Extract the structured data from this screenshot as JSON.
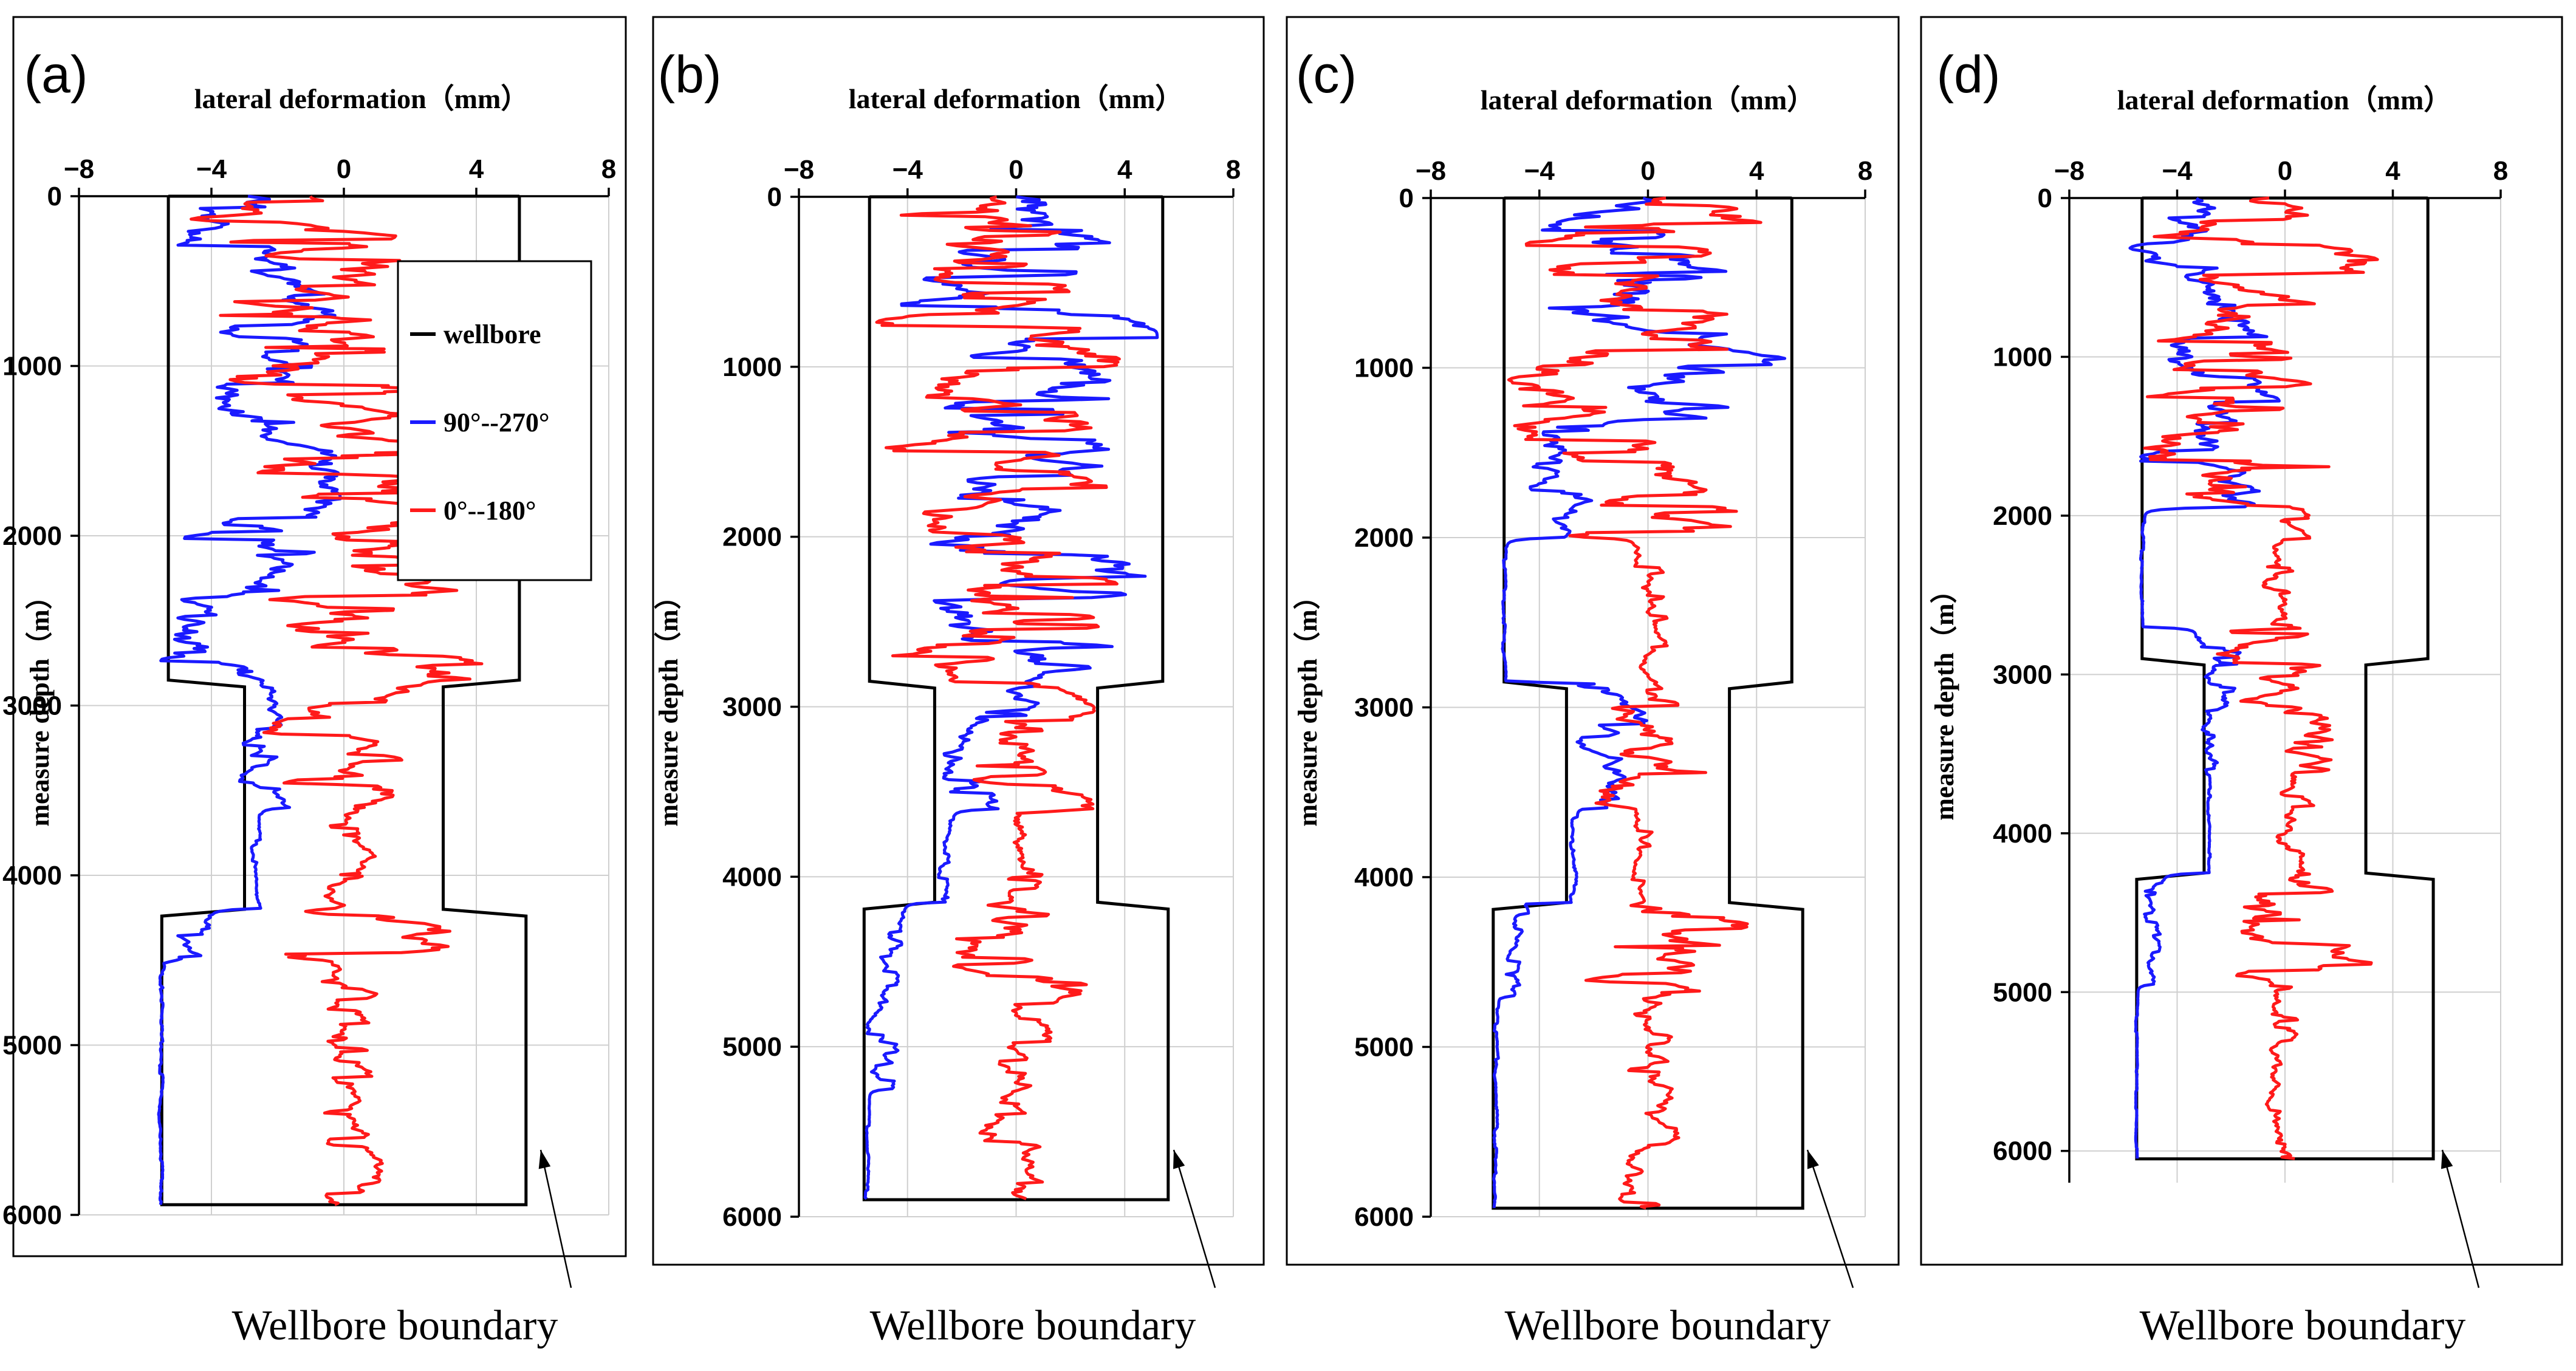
{
  "chart_data": [
    {
      "panel_label": "(a)",
      "type": "line",
      "xlabel": "lateral deformation（mm）",
      "ylabel": "measure depth（m）",
      "xlim": [
        -8,
        8
      ],
      "ylim": [
        0,
        6000
      ],
      "xticks": [
        "−8",
        "−4",
        "0",
        "4",
        "8"
      ],
      "yticks": [
        "0",
        "1000",
        "2000",
        "3000",
        "4000",
        "5000",
        "6000"
      ],
      "grid": true,
      "series": [
        {
          "name": "wellbore",
          "color": "#000000",
          "kind": "boundary",
          "segments": [
            {
              "from": 0,
              "to": 2850,
              "half_width": 5.3
            },
            {
              "from": 2850,
              "to": 4200,
              "half_width": 3.0
            },
            {
              "from": 4200,
              "to": 5940,
              "half_width": 5.5
            }
          ]
        },
        {
          "name": "90°--270°",
          "color": "#1a1aff",
          "kind": "noisy",
          "zones": [
            {
              "from": 0,
              "to": 2850,
              "center": -3.0,
              "amp": 2.9
            },
            {
              "from": 2850,
              "to": 3600,
              "center": -2.2,
              "amp": 1.0
            },
            {
              "from": 3600,
              "to": 4200,
              "center": -2.7,
              "amp": 0.2
            },
            {
              "from": 4200,
              "to": 4500,
              "center": -4.8,
              "amp": 0.8
            },
            {
              "from": 4500,
              "to": 5940,
              "center": -5.5,
              "amp": 0.1
            }
          ]
        },
        {
          "name": "0°--180°",
          "color": "#ff1a1a",
          "kind": "noisy",
          "zones": [
            {
              "from": 0,
              "to": 2850,
              "center": -0.5,
              "amp": 5.0
            },
            {
              "from": 2850,
              "to": 3600,
              "center": -0.2,
              "amp": 2.5
            },
            {
              "from": 3600,
              "to": 4200,
              "center": 0.0,
              "amp": 1.0
            },
            {
              "from": 4200,
              "to": 4500,
              "center": 0.0,
              "amp": 4.5
            },
            {
              "from": 4500,
              "to": 5940,
              "center": 0.0,
              "amp": 1.2
            }
          ]
        }
      ],
      "legend": {
        "placement": "top-right",
        "entries": [
          "wellbore",
          "90°--270°",
          "0°--180°"
        ]
      },
      "annotation": "Wellbore boundary"
    },
    {
      "panel_label": "(b)",
      "type": "line",
      "xlabel": "lateral deformation（mm）",
      "ylabel": "measure depth（m）",
      "xlim": [
        -8,
        8
      ],
      "ylim": [
        0,
        6000
      ],
      "xticks": [
        "−8",
        "−4",
        "0",
        "4",
        "8"
      ],
      "yticks": [
        "0",
        "1000",
        "2000",
        "3000",
        "4000",
        "5000",
        "6000"
      ],
      "grid": true,
      "series": [
        {
          "name": "wellbore",
          "color": "#000000",
          "kind": "boundary",
          "segments": [
            {
              "from": 0,
              "to": 2850,
              "half_width": 5.4
            },
            {
              "from": 2850,
              "to": 4150,
              "half_width": 3.0
            },
            {
              "from": 4150,
              "to": 5900,
              "half_width": 5.6
            }
          ]
        },
        {
          "name": "90°--270°",
          "color": "#1a1aff",
          "kind": "noisy",
          "zones": [
            {
              "from": 0,
              "to": 2800,
              "center": 0.0,
              "amp": 5.2
            },
            {
              "from": 2800,
              "to": 3600,
              "center": -1.0,
              "amp": 2.0
            },
            {
              "from": 3600,
              "to": 4150,
              "center": -2.6,
              "amp": 0.3
            },
            {
              "from": 4150,
              "to": 5250,
              "center": -4.8,
              "amp": 0.7
            },
            {
              "from": 5250,
              "to": 5900,
              "center": -5.5,
              "amp": 0.1
            }
          ]
        },
        {
          "name": "0°--180°",
          "color": "#ff1a1a",
          "kind": "noisy",
          "zones": [
            {
              "from": 0,
              "to": 2800,
              "center": 0.0,
              "amp": 5.2
            },
            {
              "from": 2800,
              "to": 3600,
              "center": 0.0,
              "amp": 2.9
            },
            {
              "from": 3600,
              "to": 4150,
              "center": 0.2,
              "amp": 1.2
            },
            {
              "from": 4150,
              "to": 4700,
              "center": 0.0,
              "amp": 3.8
            },
            {
              "from": 4700,
              "to": 5900,
              "center": 0.0,
              "amp": 1.5
            }
          ]
        }
      ],
      "annotation": "Wellbore boundary"
    },
    {
      "panel_label": "(c)",
      "type": "line",
      "xlabel": "lateral deformation（mm）",
      "ylabel": "measure depth（m）",
      "xlim": [
        -8,
        8
      ],
      "ylim": [
        0,
        6000
      ],
      "xticks": [
        "−8",
        "−4",
        "0",
        "4",
        "8"
      ],
      "yticks": [
        "0",
        "1000",
        "2000",
        "3000",
        "4000",
        "5000",
        "6000"
      ],
      "grid": true,
      "series": [
        {
          "name": "wellbore",
          "color": "#000000",
          "kind": "boundary",
          "segments": [
            {
              "from": 0,
              "to": 2850,
              "half_width": 5.3
            },
            {
              "from": 2850,
              "to": 4150,
              "half_width": 3.0
            },
            {
              "from": 4150,
              "to": 5950,
              "half_width": 5.7
            }
          ]
        },
        {
          "name": "90°--270°",
          "color": "#1a1aff",
          "kind": "noisy",
          "zones": [
            {
              "from": 0,
              "to": 1300,
              "center": 0.0,
              "amp": 5.2
            },
            {
              "from": 1300,
              "to": 2000,
              "center": -3.5,
              "amp": 1.8
            },
            {
              "from": 2000,
              "to": 2850,
              "center": -5.3,
              "amp": 0.1
            },
            {
              "from": 2850,
              "to": 3600,
              "center": -1.5,
              "amp": 1.6
            },
            {
              "from": 3600,
              "to": 4150,
              "center": -2.8,
              "amp": 0.2
            },
            {
              "from": 4150,
              "to": 4700,
              "center": -5.0,
              "amp": 0.6
            },
            {
              "from": 4700,
              "to": 5950,
              "center": -5.6,
              "amp": 0.1
            }
          ]
        },
        {
          "name": "0°--180°",
          "color": "#ff1a1a",
          "kind": "noisy",
          "zones": [
            {
              "from": 0,
              "to": 2000,
              "center": 0.0,
              "amp": 5.2
            },
            {
              "from": 2000,
              "to": 2950,
              "center": 0.3,
              "amp": 0.8
            },
            {
              "from": 2950,
              "to": 3600,
              "center": 0.0,
              "amp": 3.0
            },
            {
              "from": 3600,
              "to": 4150,
              "center": 0.0,
              "amp": 0.7
            },
            {
              "from": 4150,
              "to": 4700,
              "center": 0.0,
              "amp": 4.5
            },
            {
              "from": 4700,
              "to": 5950,
              "center": 0.0,
              "amp": 1.3
            }
          ]
        }
      ],
      "annotation": "Wellbore boundary"
    },
    {
      "panel_label": "(d)",
      "type": "line",
      "xlabel": "lateral deformation（mm）",
      "ylabel": "measure depth（m）",
      "xlim": [
        -8,
        8
      ],
      "ylim": [
        0,
        6200
      ],
      "xticks": [
        "−8",
        "−4",
        "0",
        "4",
        "8"
      ],
      "yticks": [
        "0",
        "1000",
        "2000",
        "3000",
        "4000",
        "5000",
        "6000"
      ],
      "grid": true,
      "series": [
        {
          "name": "wellbore",
          "color": "#000000",
          "kind": "boundary",
          "segments": [
            {
              "from": 0,
              "to": 2900,
              "half_width": 5.3
            },
            {
              "from": 2900,
              "to": 4250,
              "half_width": 3.0
            },
            {
              "from": 4250,
              "to": 6050,
              "half_width": 5.5
            }
          ]
        },
        {
          "name": "90°--270°",
          "color": "#1a1aff",
          "kind": "noisy",
          "zones": [
            {
              "from": 0,
              "to": 1950,
              "center": -3.0,
              "amp": 2.8
            },
            {
              "from": 1950,
              "to": 2700,
              "center": -5.3,
              "amp": 0.1
            },
            {
              "from": 2700,
              "to": 3600,
              "center": -2.3,
              "amp": 1.0
            },
            {
              "from": 3600,
              "to": 4250,
              "center": -2.8,
              "amp": 0.1
            },
            {
              "from": 4250,
              "to": 4950,
              "center": -5.0,
              "amp": 0.5
            },
            {
              "from": 4950,
              "to": 6050,
              "center": -5.5,
              "amp": 0.05
            }
          ]
        },
        {
          "name": "0°--180°",
          "color": "#ff1a1a",
          "kind": "noisy",
          "zones": [
            {
              "from": 0,
              "to": 1950,
              "center": -1.0,
              "amp": 4.5
            },
            {
              "from": 1950,
              "to": 2700,
              "center": 0.0,
              "amp": 1.0
            },
            {
              "from": 2700,
              "to": 3600,
              "center": 0.0,
              "amp": 3.2
            },
            {
              "from": 3600,
              "to": 4250,
              "center": 0.2,
              "amp": 1.0
            },
            {
              "from": 4250,
              "to": 4900,
              "center": 0.0,
              "amp": 3.5
            },
            {
              "from": 4900,
              "to": 6050,
              "center": 0.0,
              "amp": 0.8
            }
          ]
        }
      ],
      "annotation": "Wellbore boundary"
    }
  ]
}
